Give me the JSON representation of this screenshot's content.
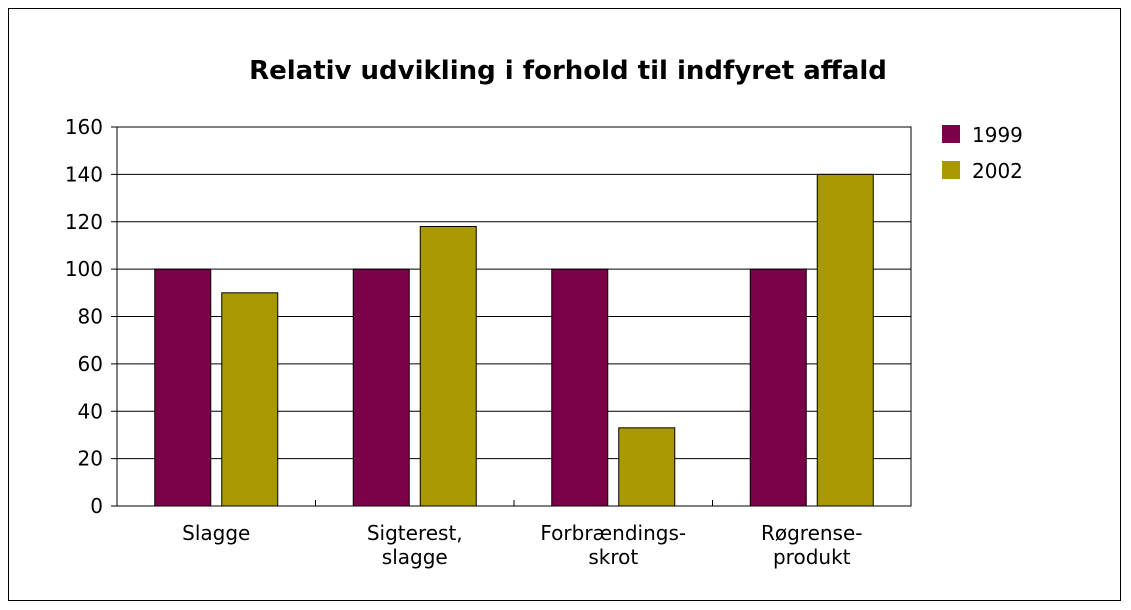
{
  "chart_data": {
    "type": "bar",
    "title": "Relativ udvikling i forhold til indfyret affald",
    "categories": [
      [
        "Slagge"
      ],
      [
        "Sigterest,",
        "slagge"
      ],
      [
        "Forbrændings-",
        "skrot"
      ],
      [
        "Røgrense-",
        "produkt"
      ]
    ],
    "series": [
      {
        "name": "1999",
        "color": "#7a0047",
        "values": [
          100,
          100,
          100,
          100
        ]
      },
      {
        "name": "2002",
        "color": "#a89900",
        "values": [
          90,
          118,
          33,
          140
        ]
      }
    ],
    "xlabel": "",
    "ylabel": "",
    "ylim": [
      0,
      160
    ],
    "yticks": [
      0,
      20,
      40,
      60,
      80,
      100,
      120,
      140,
      160
    ],
    "grid": true,
    "legend_position": "right"
  }
}
